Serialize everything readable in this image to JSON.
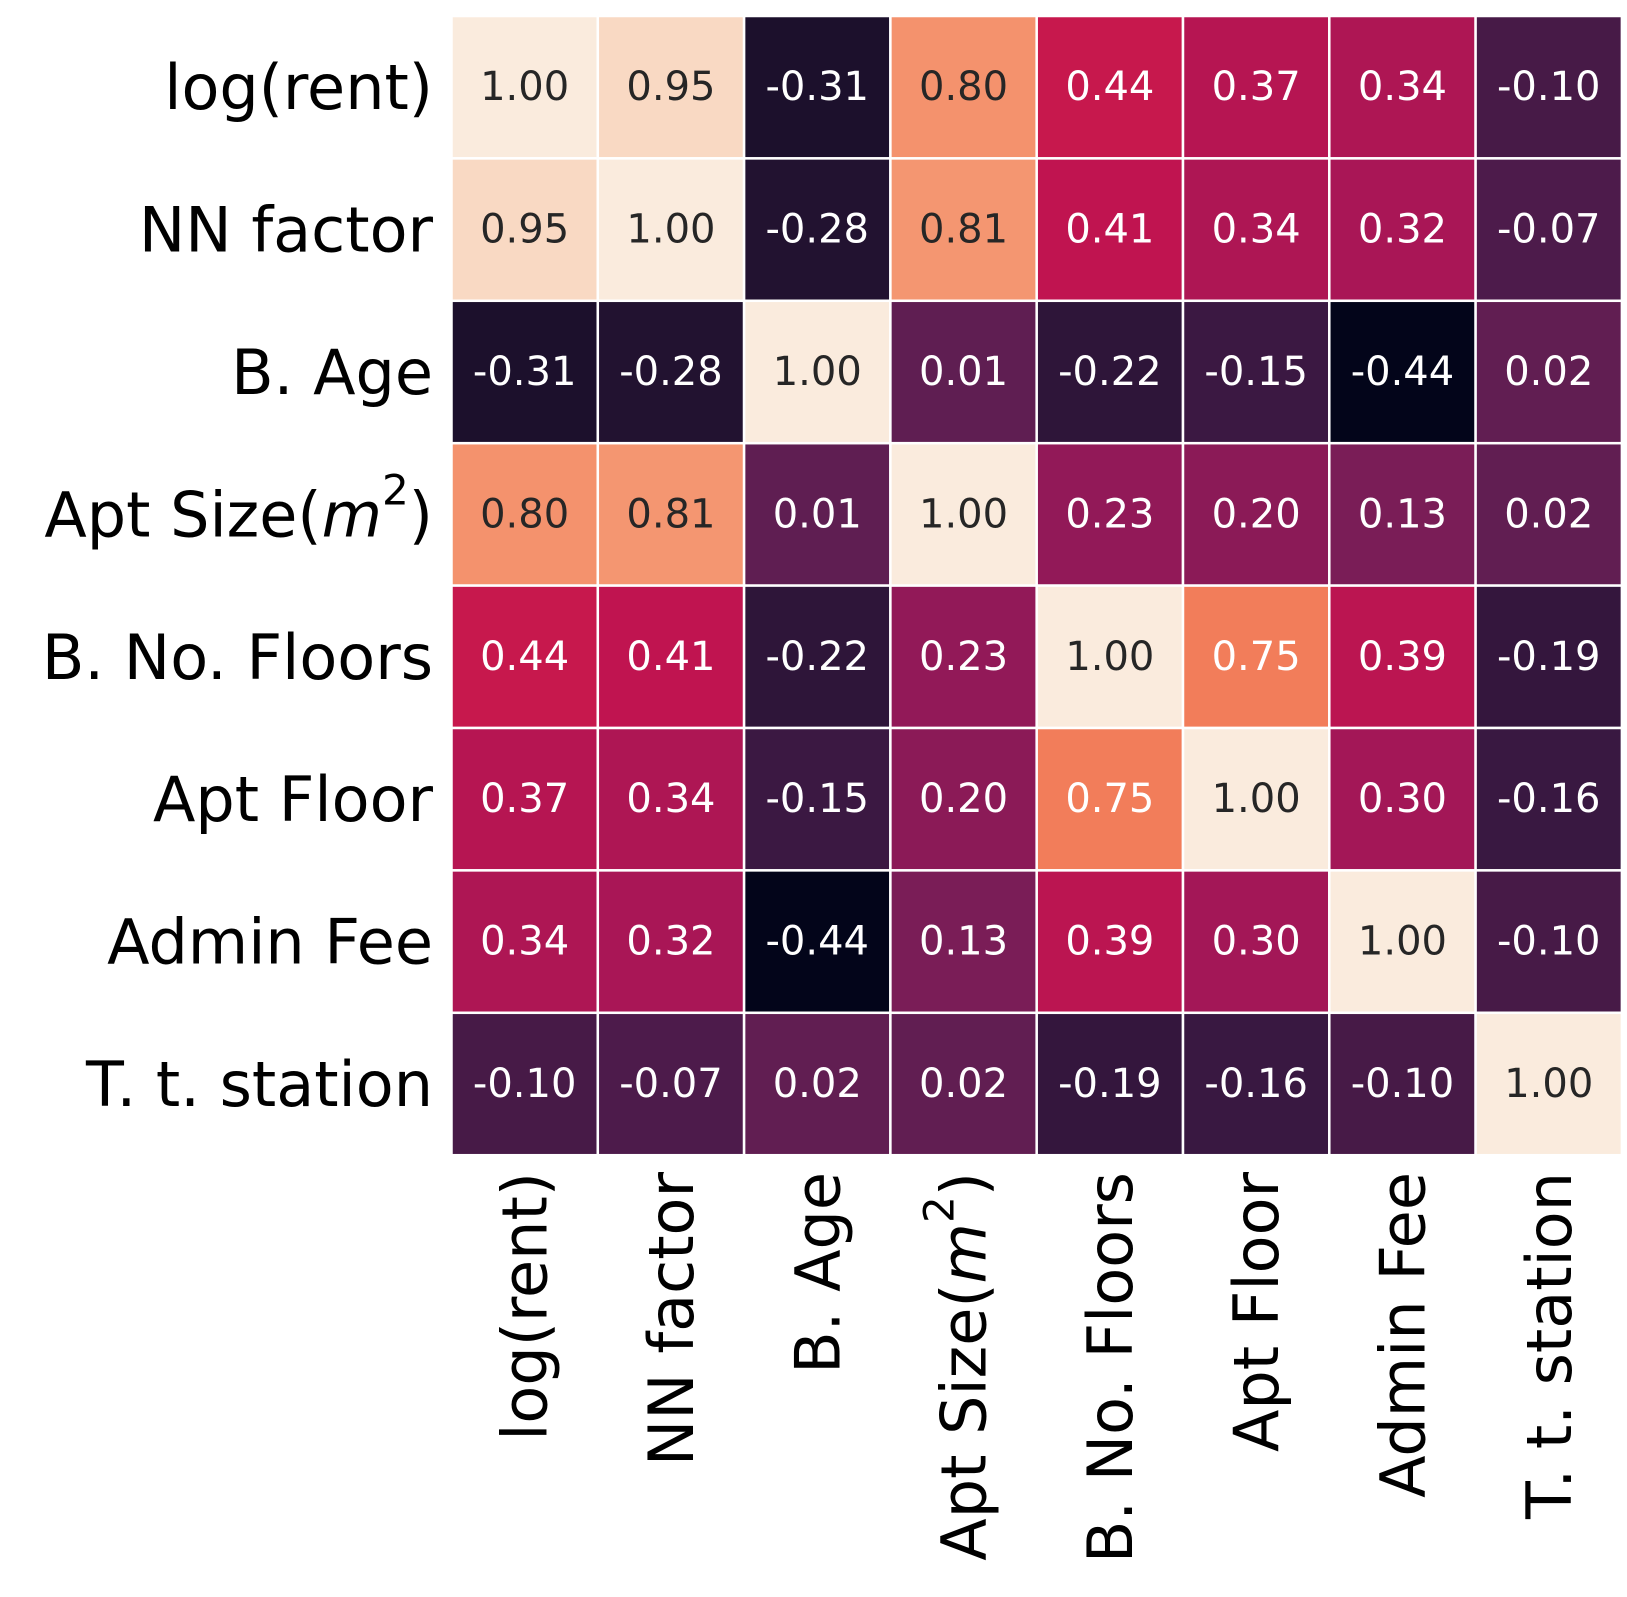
{
  "chart_data": {
    "type": "heatmap",
    "title": "",
    "xlabel": "",
    "ylabel": "",
    "row_labels": [
      {
        "text": "log(rent)"
      },
      {
        "text": "NN factor"
      },
      {
        "text": "B. Age"
      },
      {
        "text": "Apt Size(",
        "math": "m",
        "sup": "2",
        "suffix": ")"
      },
      {
        "text": "B. No. Floors"
      },
      {
        "text": "Apt Floor"
      },
      {
        "text": "Admin Fee"
      },
      {
        "text": "T. t. station"
      }
    ],
    "col_labels": [
      {
        "text": "log(rent)"
      },
      {
        "text": "NN factor"
      },
      {
        "text": "B. Age"
      },
      {
        "text": "Apt Size(",
        "math": "m",
        "sup": "2",
        "suffix": ")"
      },
      {
        "text": "B. No. Floors"
      },
      {
        "text": "Apt Floor"
      },
      {
        "text": "Admin Fee"
      },
      {
        "text": "T. t. station"
      }
    ],
    "values": [
      [
        1.0,
        0.95,
        -0.31,
        0.8,
        0.44,
        0.37,
        0.34,
        -0.1
      ],
      [
        0.95,
        1.0,
        -0.28,
        0.81,
        0.41,
        0.34,
        0.32,
        -0.07
      ],
      [
        -0.31,
        -0.28,
        1.0,
        0.01,
        -0.22,
        -0.15,
        -0.44,
        0.02
      ],
      [
        0.8,
        0.81,
        0.01,
        1.0,
        0.23,
        0.2,
        0.13,
        0.02
      ],
      [
        0.44,
        0.41,
        -0.22,
        0.23,
        1.0,
        0.75,
        0.39,
        -0.19
      ],
      [
        0.37,
        0.34,
        -0.15,
        0.2,
        0.75,
        1.0,
        0.3,
        -0.16
      ],
      [
        0.34,
        0.32,
        -0.44,
        0.13,
        0.39,
        0.3,
        1.0,
        -0.1
      ],
      [
        -0.1,
        -0.07,
        0.02,
        0.02,
        -0.19,
        -0.16,
        -0.1,
        1.0
      ]
    ],
    "value_format": "2 decimals",
    "value_range": [
      -0.44,
      1.0
    ],
    "colormap": "rocket",
    "colors": {
      "gridline": "#ffffff",
      "dark_text": "#262626",
      "light_text": "#ffffff"
    },
    "colorbar": false,
    "grid": true
  }
}
